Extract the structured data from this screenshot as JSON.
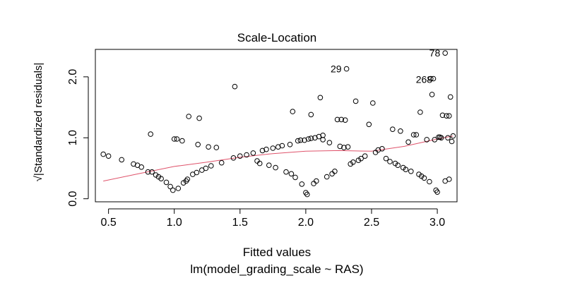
{
  "chart_data": {
    "type": "scatter",
    "title": "Scale-Location",
    "xlabel": "Fitted values",
    "ylabel": "√|Standardized residuals|",
    "subtitle": "lm(model_grading_scale ~ RAS)",
    "xlim": [
      0.4,
      3.15
    ],
    "ylim": [
      -0.05,
      2.45
    ],
    "x_ticks": [
      0.5,
      1.0,
      1.5,
      2.0,
      2.5,
      3.0
    ],
    "x_tick_labels": [
      "0.5",
      "1.0",
      "1.5",
      "2.0",
      "2.5",
      "3.0"
    ],
    "y_ticks": [
      0.0,
      1.0,
      2.0
    ],
    "y_tick_labels": [
      "0.0",
      "1.0",
      "2.0"
    ],
    "grid": false,
    "legend": "none",
    "marker": "open-circle",
    "point_color": "#000000",
    "smoother_color": "#df536b",
    "annotations": [
      {
        "label": "78",
        "x": 3.06,
        "y": 2.39
      },
      {
        "label": "29",
        "x": 2.31,
        "y": 2.13
      },
      {
        "label": "268",
        "x": 3.0,
        "y": 1.96
      }
    ],
    "points": [
      [
        0.46,
        0.73
      ],
      [
        0.5,
        0.7
      ],
      [
        0.6,
        0.64
      ],
      [
        0.69,
        0.57
      ],
      [
        0.72,
        0.55
      ],
      [
        0.75,
        0.52
      ],
      [
        0.8,
        0.44
      ],
      [
        0.82,
        1.06
      ],
      [
        0.83,
        0.44
      ],
      [
        0.86,
        0.39
      ],
      [
        0.88,
        0.36
      ],
      [
        0.9,
        0.33
      ],
      [
        0.94,
        0.27
      ],
      [
        0.97,
        0.2
      ],
      [
        0.99,
        0.14
      ],
      [
        1.0,
        0.98
      ],
      [
        1.02,
        0.98
      ],
      [
        1.03,
        0.17
      ],
      [
        1.06,
        0.95
      ],
      [
        1.07,
        0.26
      ],
      [
        1.09,
        0.29
      ],
      [
        1.1,
        0.32
      ],
      [
        1.11,
        1.35
      ],
      [
        1.14,
        0.4
      ],
      [
        1.17,
        0.43
      ],
      [
        1.18,
        0.89
      ],
      [
        1.19,
        1.32
      ],
      [
        1.21,
        0.47
      ],
      [
        1.24,
        0.5
      ],
      [
        1.26,
        0.85
      ],
      [
        1.28,
        0.54
      ],
      [
        1.32,
        0.84
      ],
      [
        1.36,
        0.59
      ],
      [
        1.46,
        1.84
      ],
      [
        1.45,
        0.67
      ],
      [
        1.5,
        0.7
      ],
      [
        1.55,
        0.72
      ],
      [
        1.6,
        0.75
      ],
      [
        1.63,
        0.62
      ],
      [
        1.65,
        0.58
      ],
      [
        1.67,
        0.79
      ],
      [
        1.7,
        0.81
      ],
      [
        1.72,
        0.55
      ],
      [
        1.75,
        0.83
      ],
      [
        1.77,
        0.51
      ],
      [
        1.79,
        0.85
      ],
      [
        1.82,
        0.87
      ],
      [
        1.85,
        0.44
      ],
      [
        1.88,
        0.89
      ],
      [
        1.89,
        0.41
      ],
      [
        1.9,
        1.43
      ],
      [
        1.92,
        0.35
      ],
      [
        1.94,
        0.95
      ],
      [
        1.96,
        0.96
      ],
      [
        1.97,
        0.24
      ],
      [
        1.99,
        0.96
      ],
      [
        2.0,
        0.1
      ],
      [
        2.01,
        0.07
      ],
      [
        2.02,
        0.98
      ],
      [
        2.04,
        0.99
      ],
      [
        2.04,
        1.38
      ],
      [
        2.06,
        0.25
      ],
      [
        2.07,
        1.0
      ],
      [
        2.08,
        0.29
      ],
      [
        2.1,
        1.02
      ],
      [
        2.11,
        1.66
      ],
      [
        2.13,
        1.04
      ],
      [
        2.13,
        0.97
      ],
      [
        2.16,
        0.36
      ],
      [
        2.18,
        0.92
      ],
      [
        2.2,
        0.41
      ],
      [
        2.22,
        0.45
      ],
      [
        2.24,
        1.3
      ],
      [
        2.26,
        0.86
      ],
      [
        2.27,
        1.3
      ],
      [
        2.29,
        0.84
      ],
      [
        2.3,
        1.29
      ],
      [
        2.31,
        2.13
      ],
      [
        2.32,
        0.85
      ],
      [
        2.34,
        0.57
      ],
      [
        2.36,
        0.6
      ],
      [
        2.38,
        1.6
      ],
      [
        2.4,
        0.63
      ],
      [
        2.42,
        0.66
      ],
      [
        2.45,
        0.7
      ],
      [
        2.48,
        1.22
      ],
      [
        2.51,
        1.57
      ],
      [
        2.53,
        0.76
      ],
      [
        2.55,
        0.8
      ],
      [
        2.58,
        0.82
      ],
      [
        2.61,
        0.66
      ],
      [
        2.64,
        0.61
      ],
      [
        2.66,
        1.14
      ],
      [
        2.68,
        0.58
      ],
      [
        2.7,
        0.55
      ],
      [
        2.72,
        1.11
      ],
      [
        2.74,
        0.51
      ],
      [
        2.76,
        0.48
      ],
      [
        2.78,
        0.93
      ],
      [
        2.8,
        0.45
      ],
      [
        2.82,
        1.05
      ],
      [
        2.84,
        1.05
      ],
      [
        2.86,
        0.4
      ],
      [
        2.87,
        1.42
      ],
      [
        2.88,
        0.37
      ],
      [
        2.9,
        0.34
      ],
      [
        2.92,
        0.97
      ],
      [
        2.94,
        0.28
      ],
      [
        2.95,
        1.97
      ],
      [
        2.96,
        1.71
      ],
      [
        2.97,
        1.97
      ],
      [
        2.98,
        0.97
      ],
      [
        2.99,
        0.14
      ],
      [
        3.0,
        0.11
      ],
      [
        3.01,
        1.01
      ],
      [
        3.02,
        1.01
      ],
      [
        3.03,
        1.0
      ],
      [
        3.04,
        1.37
      ],
      [
        3.06,
        2.39
      ],
      [
        3.06,
        0.29
      ],
      [
        3.07,
        1.36
      ],
      [
        3.08,
        1.0
      ],
      [
        3.09,
        0.32
      ],
      [
        3.09,
        1.36
      ],
      [
        3.1,
        1.67
      ],
      [
        3.11,
        0.94
      ],
      [
        3.12,
        1.03
      ]
    ],
    "smoother": [
      [
        0.46,
        0.29
      ],
      [
        0.75,
        0.42
      ],
      [
        1.0,
        0.53
      ],
      [
        1.25,
        0.6
      ],
      [
        1.5,
        0.68
      ],
      [
        1.75,
        0.74
      ],
      [
        2.0,
        0.78
      ],
      [
        2.25,
        0.79
      ],
      [
        2.5,
        0.78
      ],
      [
        2.75,
        0.86
      ],
      [
        3.0,
        0.98
      ],
      [
        3.12,
        1.03
      ]
    ]
  }
}
